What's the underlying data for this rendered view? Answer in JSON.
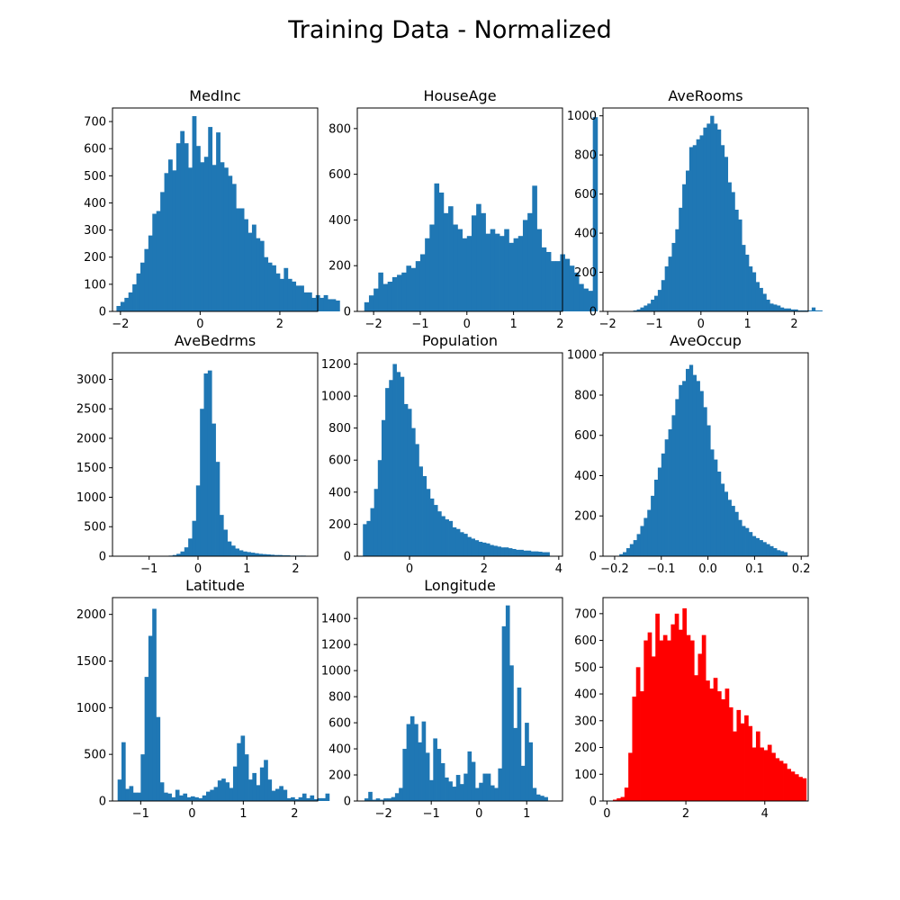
{
  "figure_title": "Training Data - Normalized",
  "chart_data": [
    {
      "type": "bar",
      "title": "MedInc",
      "color": "#1f77b4",
      "xlim": [
        -2.2,
        2.95
      ],
      "ylim": [
        0,
        750
      ],
      "xticks": [
        -2,
        0,
        2
      ],
      "yticks": [
        0,
        100,
        200,
        300,
        400,
        500,
        600,
        700
      ],
      "bin_start": -2.1,
      "bin_width": 0.1,
      "values": [
        20,
        35,
        50,
        70,
        100,
        140,
        180,
        230,
        280,
        360,
        370,
        440,
        510,
        560,
        520,
        620,
        665,
        620,
        530,
        720,
        610,
        550,
        570,
        680,
        540,
        660,
        550,
        530,
        500,
        470,
        380,
        380,
        340,
        290,
        320,
        270,
        260,
        200,
        180,
        170,
        140,
        120,
        160,
        120,
        110,
        95,
        95,
        70,
        70,
        50,
        60,
        50,
        60,
        45,
        45,
        40
      ]
    },
    {
      "type": "bar",
      "title": "HouseAge",
      "color": "#1f77b4",
      "xlim": [
        -2.35,
        2.05
      ],
      "ylim": [
        0,
        890
      ],
      "xticks": [
        -2,
        -1,
        0,
        1,
        2
      ],
      "yticks": [
        0,
        200,
        400,
        600,
        800
      ],
      "bin_start": -2.2,
      "bin_width": 0.1,
      "values": [
        40,
        70,
        100,
        170,
        120,
        130,
        150,
        160,
        170,
        200,
        190,
        220,
        250,
        320,
        380,
        560,
        520,
        430,
        460,
        380,
        360,
        320,
        330,
        420,
        470,
        430,
        340,
        360,
        340,
        330,
        360,
        300,
        320,
        330,
        400,
        430,
        550,
        360,
        280,
        260,
        220,
        220,
        250,
        230,
        200,
        170,
        120,
        100,
        90,
        850
      ]
    },
    {
      "type": "bar",
      "title": "AveRooms",
      "color": "#1f77b4",
      "xlim": [
        -2.1,
        2.3
      ],
      "ylim": [
        0,
        1040
      ],
      "xticks": [
        -2,
        -1,
        0,
        1,
        2
      ],
      "yticks": [
        0,
        200,
        400,
        600,
        800,
        1000
      ],
      "bin_start": -1.45,
      "bin_width": 0.075,
      "values": [
        5,
        10,
        20,
        30,
        40,
        60,
        80,
        110,
        160,
        230,
        280,
        350,
        420,
        530,
        650,
        720,
        840,
        850,
        880,
        900,
        940,
        960,
        1000,
        960,
        930,
        850,
        790,
        660,
        610,
        520,
        470,
        340,
        290,
        230,
        200,
        150,
        120,
        90,
        60,
        40,
        35,
        30,
        20,
        15,
        15,
        10,
        10,
        5,
        5,
        5,
        5,
        20,
        5,
        5
      ]
    },
    {
      "type": "bar",
      "title": "AveBedrms",
      "color": "#1f77b4",
      "xlim": [
        -1.75,
        2.45
      ],
      "ylim": [
        0,
        3450
      ],
      "xticks": [
        -1,
        0,
        1,
        2
      ],
      "yticks": [
        0,
        500,
        1000,
        1500,
        2000,
        2500,
        3000
      ],
      "bin_start": -0.6,
      "bin_width": 0.08,
      "values": [
        10,
        20,
        40,
        80,
        150,
        300,
        600,
        1200,
        2500,
        3100,
        3150,
        2250,
        1600,
        700,
        450,
        250,
        180,
        130,
        100,
        80,
        70,
        60,
        50,
        40,
        35,
        30,
        25,
        20,
        20,
        15,
        15,
        10,
        10,
        10,
        10
      ]
    },
    {
      "type": "bar",
      "title": "Population",
      "color": "#1f77b4",
      "xlim": [
        -1.4,
        4.1
      ],
      "ylim": [
        0,
        1270
      ],
      "xticks": [
        0,
        2,
        4
      ],
      "yticks": [
        0,
        200,
        400,
        600,
        800,
        1000,
        1200
      ],
      "bin_start": -1.25,
      "bin_width": 0.1,
      "values": [
        200,
        220,
        300,
        420,
        600,
        850,
        1050,
        1100,
        1200,
        1150,
        1120,
        950,
        920,
        800,
        700,
        560,
        500,
        420,
        360,
        320,
        280,
        250,
        230,
        220,
        180,
        170,
        150,
        140,
        120,
        110,
        100,
        90,
        85,
        80,
        70,
        65,
        60,
        55,
        55,
        50,
        45,
        40,
        40,
        35,
        35,
        30,
        30,
        28,
        25,
        25
      ]
    },
    {
      "type": "bar",
      "title": "AveOccup",
      "color": "#1f77b4",
      "xlim": [
        -0.225,
        0.215
      ],
      "ylim": [
        0,
        1010
      ],
      "xticks": [
        -0.2,
        -0.1,
        0.0,
        0.1,
        0.2
      ],
      "yticks": [
        0,
        200,
        400,
        600,
        800,
        1000
      ],
      "bin_start": -0.19,
      "bin_width": 0.0075,
      "values": [
        10,
        20,
        40,
        60,
        80,
        110,
        150,
        190,
        230,
        300,
        380,
        440,
        510,
        580,
        630,
        700,
        780,
        850,
        870,
        930,
        950,
        900,
        870,
        820,
        740,
        650,
        530,
        480,
        420,
        360,
        320,
        280,
        250,
        220,
        180,
        150,
        140,
        120,
        100,
        90,
        80,
        70,
        60,
        50,
        40,
        30,
        25,
        20
      ]
    },
    {
      "type": "bar",
      "title": "Latitude",
      "color": "#1f77b4",
      "xlim": [
        -1.55,
        2.45
      ],
      "ylim": [
        0,
        2180
      ],
      "xticks": [
        -1,
        0,
        1,
        2
      ],
      "yticks": [
        0,
        500,
        1000,
        1500,
        2000
      ],
      "bin_start": -1.45,
      "bin_width": 0.075,
      "values": [
        230,
        630,
        130,
        160,
        90,
        90,
        500,
        1330,
        1770,
        2060,
        900,
        200,
        90,
        80,
        40,
        120,
        60,
        80,
        40,
        50,
        40,
        30,
        60,
        100,
        120,
        150,
        220,
        240,
        200,
        140,
        370,
        620,
        700,
        500,
        230,
        300,
        170,
        360,
        440,
        230,
        110,
        130,
        160,
        120,
        30,
        40,
        20,
        40,
        80,
        30,
        60,
        20,
        30,
        30,
        80
      ]
    },
    {
      "type": "bar",
      "title": "Longitude",
      "color": "#1f77b4",
      "xlim": [
        -2.55,
        1.75
      ],
      "ylim": [
        0,
        1560
      ],
      "xticks": [
        -2,
        -1,
        0,
        1
      ],
      "yticks": [
        0,
        200,
        400,
        600,
        800,
        1000,
        1200,
        1400
      ],
      "bin_start": -2.4,
      "bin_width": 0.08,
      "values": [
        20,
        70,
        10,
        20,
        10,
        20,
        20,
        30,
        60,
        100,
        400,
        590,
        650,
        590,
        450,
        610,
        370,
        160,
        480,
        400,
        290,
        180,
        150,
        110,
        200,
        130,
        210,
        380,
        300,
        100,
        140,
        210,
        210,
        120,
        100,
        250,
        1340,
        1500,
        1040,
        560,
        870,
        270,
        600,
        450,
        100,
        50,
        40,
        30
      ]
    },
    {
      "type": "bar",
      "title": "",
      "color": "#ff0000",
      "xlim": [
        -0.1,
        5.1
      ],
      "ylim": [
        0,
        760
      ],
      "xticks": [
        0,
        2,
        4
      ],
      "yticks": [
        0,
        100,
        200,
        300,
        400,
        500,
        600,
        700
      ],
      "bin_start": 0.15,
      "bin_width": 0.098,
      "values": [
        5,
        10,
        15,
        50,
        180,
        390,
        500,
        410,
        600,
        630,
        540,
        700,
        600,
        620,
        600,
        660,
        700,
        640,
        720,
        620,
        600,
        470,
        550,
        620,
        450,
        420,
        460,
        410,
        380,
        420,
        350,
        260,
        340,
        290,
        320,
        280,
        200,
        260,
        200,
        190,
        210,
        180,
        160,
        150,
        140,
        120,
        110,
        100,
        90,
        85
      ]
    }
  ]
}
